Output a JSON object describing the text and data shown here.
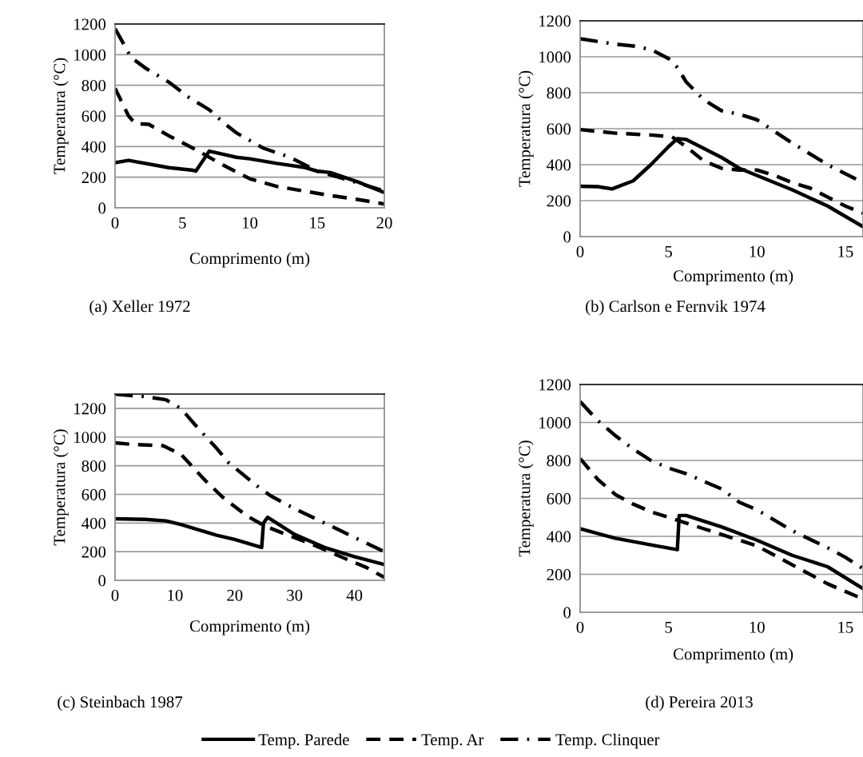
{
  "chart_data": [
    {
      "type": "line",
      "title": "(a) Xeller 1972",
      "xlabel": "Comprimento (m)",
      "ylabel": "Temperatura (°C)",
      "xlim": [
        0,
        20
      ],
      "xticks": [
        0,
        5,
        10,
        15,
        20
      ],
      "ylim": [
        0,
        1200
      ],
      "yticks": [
        0,
        200,
        400,
        600,
        800,
        1000,
        1200
      ],
      "grid": "y",
      "legend": "bottom",
      "series": [
        {
          "name": "Temp. Parede",
          "color": "#000000",
          "line_style": "solid",
          "x": [
            0,
            1,
            4,
            5.8,
            6,
            7,
            8,
            9,
            10,
            12,
            14,
            15,
            16,
            18,
            20
          ],
          "values": [
            295,
            310,
            262,
            245,
            240,
            370,
            350,
            330,
            320,
            290,
            265,
            240,
            230,
            170,
            100
          ]
        },
        {
          "name": "Temp. Ar",
          "color": "#000000",
          "line_style": "dashed",
          "x": [
            0,
            1,
            1.5,
            2.5,
            4,
            6,
            8,
            10,
            12,
            14,
            16,
            18,
            20
          ],
          "values": [
            780,
            600,
            550,
            545,
            470,
            380,
            280,
            190,
            140,
            110,
            80,
            55,
            25
          ]
        },
        {
          "name": "Temp. Clinquer",
          "color": "#000000",
          "line_style": "dashdot",
          "x": [
            0,
            1.2,
            2.3,
            4,
            5.5,
            7,
            8,
            9,
            11,
            13,
            15,
            17,
            20
          ],
          "values": [
            1170,
            980,
            910,
            820,
            720,
            640,
            560,
            490,
            390,
            330,
            240,
            190,
            110
          ]
        }
      ]
    },
    {
      "type": "line",
      "title": "(b) Carlson e Fernvik 1974",
      "xlabel": "Comprimento (m)",
      "ylabel": "Temperatura (°C)",
      "xlim": [
        0,
        16
      ],
      "xticks": [
        0,
        5,
        10,
        15
      ],
      "ylim": [
        0,
        1200
      ],
      "yticks": [
        0,
        200,
        400,
        600,
        800,
        1000,
        1200
      ],
      "grid": "y",
      "legend": false,
      "series": [
        {
          "color": "#000000",
          "line_style": "solid",
          "x": [
            0,
            1,
            1.8,
            3,
            4,
            5,
            5.5,
            6,
            7,
            8,
            9,
            10,
            12,
            14,
            16
          ],
          "values": [
            280,
            278,
            265,
            310,
            400,
            500,
            545,
            540,
            490,
            440,
            380,
            340,
            260,
            170,
            55
          ]
        },
        {
          "color": "#000000",
          "line_style": "dashed",
          "x": [
            0,
            2,
            4,
            5.2,
            6,
            7,
            8,
            9,
            10,
            11,
            12,
            13,
            14,
            15,
            16
          ],
          "values": [
            595,
            575,
            565,
            555,
            500,
            420,
            380,
            370,
            370,
            340,
            300,
            270,
            220,
            170,
            130
          ]
        },
        {
          "color": "#000000",
          "line_style": "dashdot",
          "x": [
            0,
            2,
            3,
            4,
            5,
            5.5,
            6,
            7,
            8,
            9,
            10,
            12,
            14,
            16
          ],
          "values": [
            1100,
            1070,
            1060,
            1040,
            990,
            940,
            860,
            760,
            700,
            680,
            650,
            520,
            400,
            300
          ]
        }
      ]
    },
    {
      "type": "line",
      "title": "(c) Steinbach 1987",
      "xlabel": "Comprimento (m)",
      "ylabel": "Temperatura (°C)",
      "xlim": [
        0,
        45
      ],
      "xticks": [
        0,
        10,
        20,
        30,
        40
      ],
      "ylim": [
        0,
        1300
      ],
      "yticks": [
        0,
        200,
        400,
        600,
        800,
        1000,
        1200
      ],
      "grid": "y",
      "legend": false,
      "series": [
        {
          "color": "#000000",
          "line_style": "solid",
          "x": [
            0,
            5,
            8.5,
            11,
            15,
            17,
            20,
            24.5,
            24.8,
            25.5,
            30,
            35,
            40,
            45
          ],
          "values": [
            430,
            425,
            415,
            390,
            340,
            315,
            285,
            230,
            400,
            440,
            320,
            230,
            165,
            110
          ]
        },
        {
          "color": "#000000",
          "line_style": "dashed",
          "x": [
            0,
            2.5,
            8,
            11,
            15,
            18,
            22,
            25,
            28,
            33,
            38,
            42,
            45
          ],
          "values": [
            960,
            950,
            940,
            880,
            700,
            580,
            450,
            380,
            330,
            250,
            160,
            90,
            20
          ]
        },
        {
          "color": "#000000",
          "line_style": "dashdot",
          "x": [
            0,
            5.5,
            8.5,
            11,
            13.5,
            15,
            17,
            19,
            24,
            26,
            30,
            34,
            38,
            41,
            45
          ],
          "values": [
            1300,
            1280,
            1260,
            1200,
            1080,
            1010,
            920,
            820,
            650,
            590,
            500,
            420,
            340,
            280,
            200
          ]
        }
      ]
    },
    {
      "type": "line",
      "title": "(d) Pereira 2013",
      "xlabel": "Comprimento (m)",
      "ylabel": "Temperatura (°C)",
      "xlim": [
        0,
        16
      ],
      "xticks": [
        0,
        5,
        10,
        15
      ],
      "ylim": [
        0,
        1200
      ],
      "yticks": [
        0,
        200,
        400,
        600,
        800,
        1000,
        1200
      ],
      "grid": "y",
      "series": [
        {
          "color": "#000000",
          "line_style": "solid",
          "x": [
            0,
            2,
            4,
            5.5,
            5.6,
            6,
            8,
            10,
            12,
            14,
            16
          ],
          "values": [
            440,
            390,
            355,
            330,
            510,
            510,
            450,
            380,
            300,
            240,
            125
          ]
        },
        {
          "color": "#000000",
          "line_style": "dashed",
          "x": [
            0,
            1,
            2,
            3,
            4,
            5,
            6,
            7,
            8,
            10,
            12,
            14,
            15,
            16
          ],
          "values": [
            810,
            700,
            620,
            570,
            530,
            500,
            470,
            440,
            410,
            350,
            250,
            150,
            110,
            70
          ]
        },
        {
          "color": "#000000",
          "line_style": "dashdot",
          "x": [
            0,
            1,
            2,
            3,
            4,
            5,
            6,
            7,
            8,
            9,
            10,
            12,
            14,
            15,
            16
          ],
          "values": [
            1110,
            1010,
            930,
            860,
            800,
            760,
            730,
            690,
            650,
            580,
            540,
            430,
            340,
            290,
            230
          ]
        }
      ]
    }
  ]
}
